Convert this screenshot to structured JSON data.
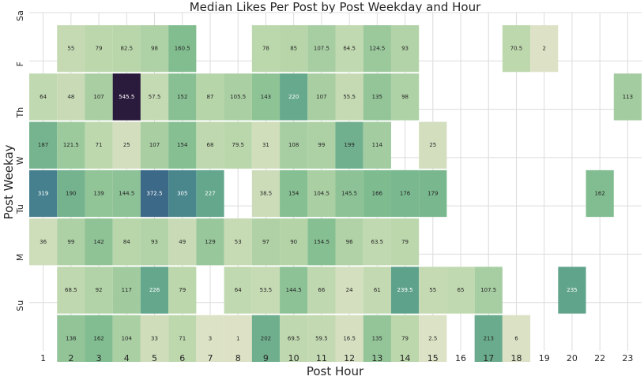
{
  "chart_data": {
    "type": "heatmap",
    "title": "Median Likes Per Post by Post Weekday and Hour",
    "xlabel": "Post Hour",
    "ylabel": "Post Weekay",
    "x_categories": [
      "1",
      "2",
      "3",
      "4",
      "5",
      "6",
      "7",
      "8",
      "9",
      "10",
      "11",
      "12",
      "13",
      "14",
      "15",
      "16",
      "17",
      "18",
      "19",
      "20",
      "22",
      "23"
    ],
    "y_categories": [
      "Sa",
      "F",
      "Th",
      "W",
      "Tu",
      "M",
      "Su"
    ],
    "colormap": {
      "low": "#dde2c6",
      "mid": "#7fbc8f",
      "high_mid": "#3e6a8e",
      "max": "#2a1b3c"
    },
    "value_range": [
      1,
      545.5
    ],
    "grid": true,
    "rows": [
      {
        "day": "Sa",
        "cells": [
          [
            "2",
            "55"
          ],
          [
            "3",
            "79"
          ],
          [
            "4",
            "82.5"
          ],
          [
            "5",
            "98"
          ],
          [
            "6",
            "160.5"
          ],
          [
            "9",
            "78"
          ],
          [
            "10",
            "85"
          ],
          [
            "11",
            "107.5"
          ],
          [
            "12",
            "64.5"
          ],
          [
            "13",
            "124.5"
          ],
          [
            "14",
            "93"
          ],
          [
            "18",
            "70.5"
          ],
          [
            "19",
            "2"
          ]
        ]
      },
      {
        "day": "F",
        "cells": [
          [
            "1",
            "64"
          ],
          [
            "2",
            "48"
          ],
          [
            "3",
            "107"
          ],
          [
            "4",
            "545.5"
          ],
          [
            "5",
            "57.5"
          ],
          [
            "6",
            "152"
          ],
          [
            "7",
            "87"
          ],
          [
            "8",
            "105.5"
          ],
          [
            "9",
            "143"
          ],
          [
            "10",
            "220"
          ],
          [
            "11",
            "107"
          ],
          [
            "12",
            "55.5"
          ],
          [
            "13",
            "135"
          ],
          [
            "14",
            "98"
          ],
          [
            "23",
            "113"
          ]
        ]
      },
      {
        "day": "Th",
        "cells": [
          [
            "1",
            "187"
          ],
          [
            "2",
            "121.5"
          ],
          [
            "3",
            "71"
          ],
          [
            "4",
            "25"
          ],
          [
            "5",
            "107"
          ],
          [
            "6",
            "154"
          ],
          [
            "7",
            "68"
          ],
          [
            "8",
            "79.5"
          ],
          [
            "9",
            "31"
          ],
          [
            "10",
            "108"
          ],
          [
            "11",
            "99"
          ],
          [
            "12",
            "199"
          ],
          [
            "13",
            "114"
          ],
          [
            "15",
            "25"
          ]
        ]
      },
      {
        "day": "W",
        "cells": [
          [
            "1",
            "319"
          ],
          [
            "2",
            "190"
          ],
          [
            "3",
            "139"
          ],
          [
            "4",
            "144.5"
          ],
          [
            "5",
            "372.5"
          ],
          [
            "6",
            "305"
          ],
          [
            "7",
            "227"
          ],
          [
            "9",
            "38.5"
          ],
          [
            "10",
            "154"
          ],
          [
            "11",
            "104.5"
          ],
          [
            "12",
            "145.5"
          ],
          [
            "13",
            "166"
          ],
          [
            "14",
            "176"
          ],
          [
            "15",
            "179"
          ],
          [
            "22",
            "162"
          ]
        ]
      },
      {
        "day": "Tu",
        "cells": [
          [
            "1",
            "36"
          ],
          [
            "2",
            "99"
          ],
          [
            "3",
            "142"
          ],
          [
            "4",
            "84"
          ],
          [
            "5",
            "93"
          ],
          [
            "6",
            "49"
          ],
          [
            "7",
            "129"
          ],
          [
            "8",
            "53"
          ],
          [
            "9",
            "97"
          ],
          [
            "10",
            "90"
          ],
          [
            "11",
            "154.5"
          ],
          [
            "12",
            "96"
          ],
          [
            "13",
            "63.5"
          ],
          [
            "14",
            "79"
          ]
        ]
      },
      {
        "day": "M",
        "cells": [
          [
            "2",
            "68.5"
          ],
          [
            "3",
            "92"
          ],
          [
            "4",
            "117"
          ],
          [
            "5",
            "226"
          ],
          [
            "6",
            "79"
          ],
          [
            "8",
            "64"
          ],
          [
            "9",
            "53.5"
          ],
          [
            "10",
            "144.5"
          ],
          [
            "11",
            "66"
          ],
          [
            "12",
            "24"
          ],
          [
            "13",
            "61"
          ],
          [
            "14",
            "239.5"
          ],
          [
            "15",
            "55"
          ],
          [
            "16",
            "65"
          ],
          [
            "17",
            "107.5"
          ],
          [
            "20",
            "235"
          ]
        ]
      },
      {
        "day": "Su",
        "cells": [
          [
            "2",
            "138"
          ],
          [
            "3",
            "162"
          ],
          [
            "4",
            "104"
          ],
          [
            "5",
            "33"
          ],
          [
            "6",
            "71"
          ],
          [
            "7",
            "3"
          ],
          [
            "8",
            "1"
          ],
          [
            "9",
            "202"
          ],
          [
            "10",
            "69.5"
          ],
          [
            "11",
            "59.5"
          ],
          [
            "12",
            "16.5"
          ],
          [
            "13",
            "135"
          ],
          [
            "14",
            "79"
          ],
          [
            "15",
            "2.5"
          ],
          [
            "17",
            "213"
          ],
          [
            "18",
            "6"
          ]
        ]
      }
    ]
  }
}
